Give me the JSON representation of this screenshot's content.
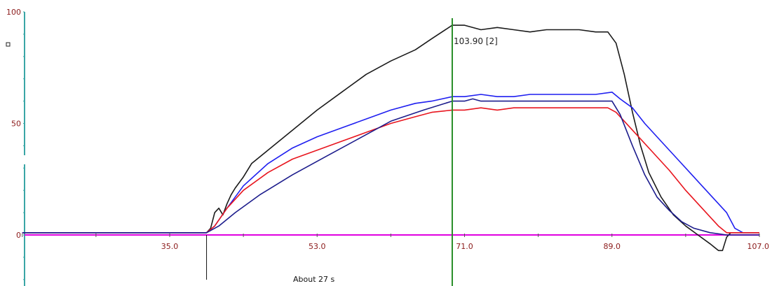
{
  "colors": {
    "background": "#ffffff",
    "y_axis": "#3aa6a6",
    "baseline": "#e000e0",
    "cursor": "#2a8f2a",
    "tick_label": "#8b1a1a"
  },
  "cursor_readout": "103.90 [2]",
  "annotation": "About 27 s",
  "chart_data": {
    "type": "line",
    "title": "",
    "xlabel": "",
    "ylabel": "",
    "xlim": [
      17,
      107
    ],
    "ylim": [
      -20,
      100
    ],
    "x_ticks": [
      {
        "value": 35,
        "label": "35.0"
      },
      {
        "value": 53,
        "label": "53.0"
      },
      {
        "value": 71,
        "label": "71.0"
      },
      {
        "value": 89,
        "label": "89.0"
      },
      {
        "value": 107,
        "label": "107.0"
      }
    ],
    "y_ticks": [
      {
        "value": 0,
        "label": "0"
      },
      {
        "value": 50,
        "label": "50"
      },
      {
        "value": 100,
        "label": "100"
      }
    ],
    "grid": false,
    "legend": "none",
    "cursor_x": 69.5,
    "marker_x": 39.5,
    "series": [
      {
        "color": "#1a1a1a",
        "x": [
          17,
          38,
          39.5,
          40,
          40.5,
          41,
          41.5,
          42,
          42.5,
          43,
          44,
          45,
          47,
          50,
          53,
          56,
          59,
          62,
          65,
          67,
          69.5,
          71,
          73,
          75,
          77,
          79,
          81,
          83,
          85,
          87,
          88.5,
          89.5,
          90.5,
          91.5,
          92.5,
          93.5,
          95,
          96.5,
          98,
          99.5,
          101,
          102,
          102.5,
          103,
          103.5,
          104,
          107
        ],
        "y": [
          1,
          1,
          1,
          3,
          10,
          12,
          9,
          14,
          18,
          21,
          26,
          32,
          38,
          47,
          56,
          64,
          72,
          78,
          83,
          88,
          94,
          94,
          92,
          93,
          92,
          91,
          92,
          92,
          92,
          91,
          91,
          86,
          72,
          55,
          40,
          28,
          17,
          9,
          4,
          0,
          -4,
          -7,
          -7,
          -1,
          1,
          1,
          1
        ]
      },
      {
        "color": "#1f1ff0",
        "x": [
          17,
          38,
          39.5,
          40.5,
          42,
          44,
          47,
          50,
          53,
          56,
          59,
          62,
          65,
          67,
          69.5,
          71,
          73,
          75,
          77,
          79,
          81,
          83,
          85,
          87,
          89,
          90,
          91.5,
          93,
          95,
          97,
          99,
          101,
          103,
          104,
          105,
          107
        ],
        "y": [
          1,
          1,
          1,
          4,
          12,
          22,
          32,
          39,
          44,
          48,
          52,
          56,
          59,
          60,
          62,
          62,
          63,
          62,
          62,
          63,
          63,
          63,
          63,
          63,
          64,
          61,
          57,
          50,
          42,
          34,
          26,
          18,
          10,
          3,
          1,
          1
        ]
      },
      {
        "color": "#e8151e",
        "x": [
          17,
          38,
          39.5,
          40.5,
          42,
          44,
          47,
          50,
          53,
          56,
          59,
          62,
          65,
          67,
          69.5,
          71,
          73,
          75,
          77,
          79,
          81,
          83,
          85,
          87,
          88.5,
          89.5,
          90.5,
          92,
          94,
          96,
          98,
          100,
          102,
          103,
          104,
          107
        ],
        "y": [
          1,
          1,
          1,
          4,
          12,
          20,
          28,
          34,
          38,
          42,
          46,
          50,
          53,
          55,
          56,
          56,
          57,
          56,
          57,
          57,
          57,
          57,
          57,
          57,
          57,
          55,
          51,
          45,
          37,
          29,
          20,
          12,
          4,
          1,
          1,
          1
        ]
      },
      {
        "color": "#1c1c8c",
        "x": [
          17,
          38,
          39.5,
          41,
          43,
          46,
          50,
          54,
          58,
          62,
          66,
          69.5,
          71,
          72,
          73,
          75,
          77,
          79,
          81,
          83,
          85,
          87,
          89,
          90,
          91.5,
          93,
          94.5,
          96,
          97.5,
          99,
          101,
          103,
          104,
          107
        ],
        "y": [
          1,
          1,
          1,
          4,
          10,
          18,
          27,
          35,
          43,
          51,
          56,
          60,
          60,
          61,
          60,
          60,
          60,
          60,
          60,
          60,
          60,
          60,
          60,
          54,
          40,
          27,
          17,
          11,
          6,
          3,
          1,
          0,
          0,
          0
        ]
      }
    ]
  }
}
